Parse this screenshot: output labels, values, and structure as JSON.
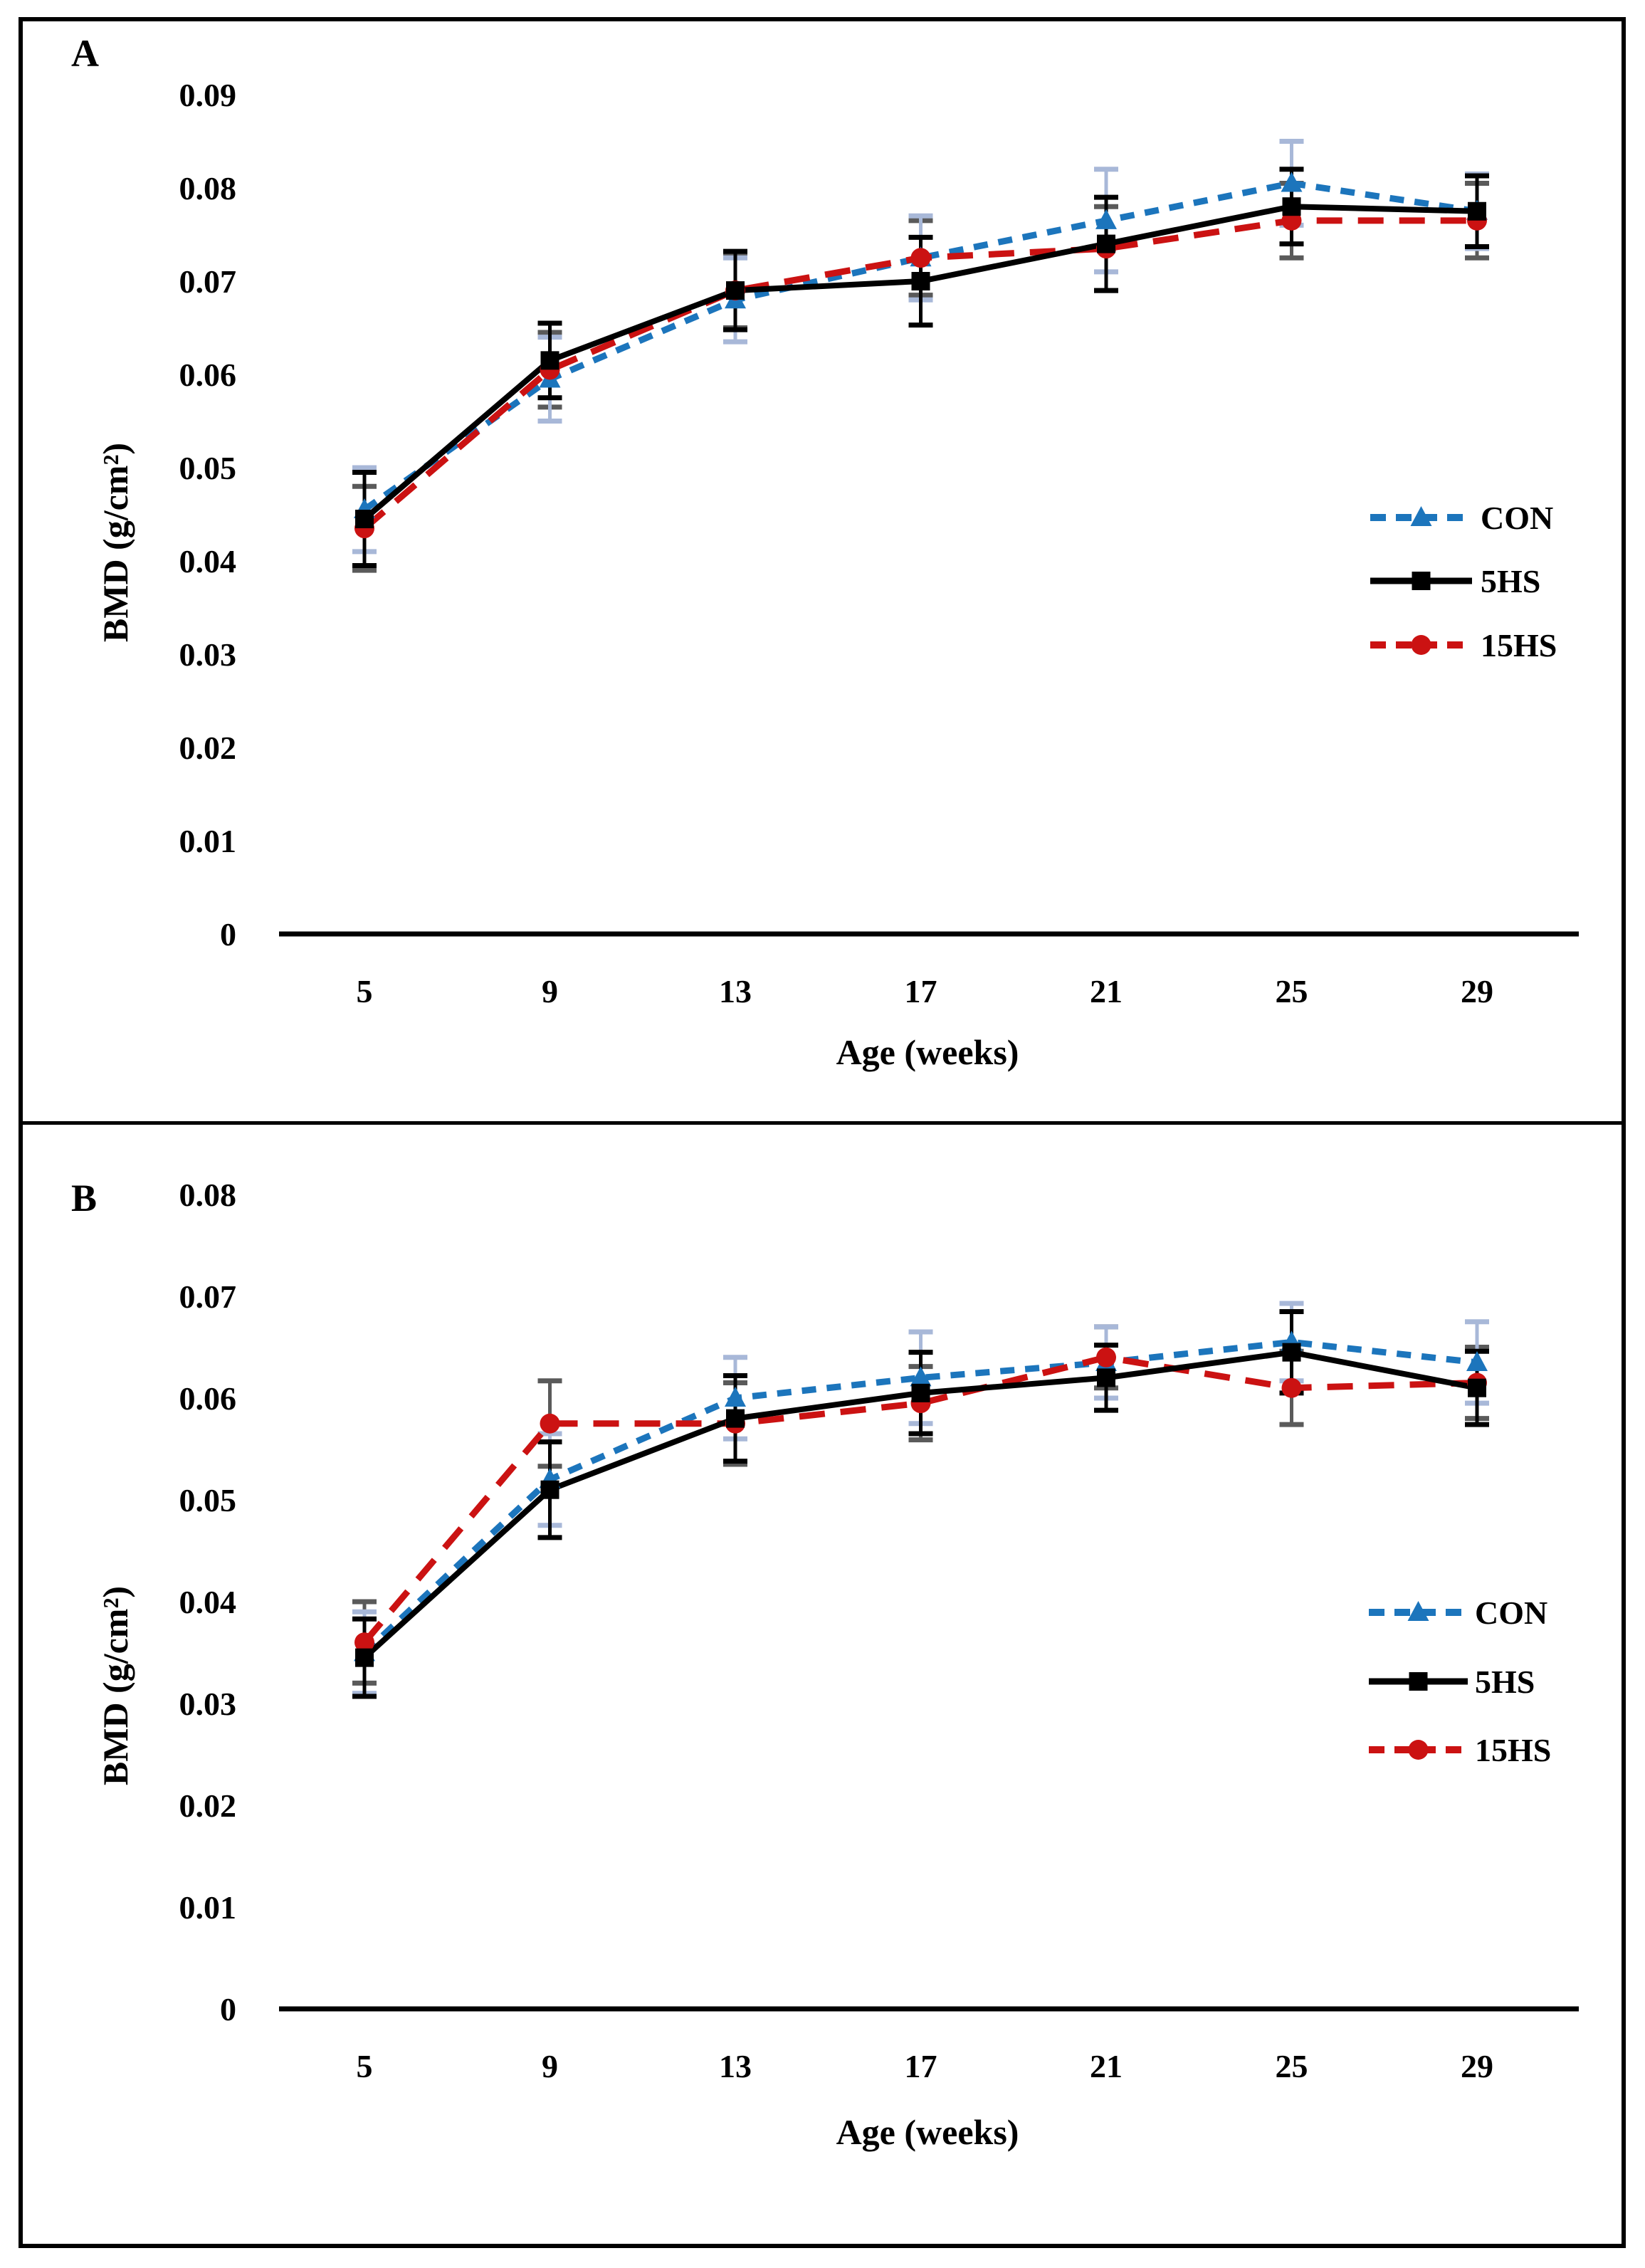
{
  "figure": {
    "panel_a_letter": "A",
    "panel_b_letter": "B",
    "y_axis_title": "BMD (g/cm²)",
    "x_axis_title": "Age (weeks)"
  },
  "chart_data": [
    {
      "type": "line",
      "panel_label": "A",
      "title": "",
      "xlabel": "Age (weeks)",
      "ylabel": "BMD (g/cm²)",
      "categories": [
        5,
        9,
        13,
        17,
        21,
        25,
        29
      ],
      "ylim": [
        0,
        0.09
      ],
      "yticks": [
        "0.09",
        "0.08",
        "0.07",
        "0.06",
        "0.05",
        "0.04",
        "0.03",
        "0.02",
        "0.01",
        "0"
      ],
      "ytick_values": [
        0.09,
        0.08,
        0.07,
        0.06,
        0.05,
        0.04,
        0.03,
        0.02,
        0.01,
        0
      ],
      "grid": false,
      "legend_position": "right-center",
      "series": [
        {
          "name": "CON",
          "color": "#1C75BC",
          "error_color": "#A8B8D8",
          "line_style": "dashed",
          "dash": "20 15",
          "marker": "triangle",
          "values": [
            0.0455,
            0.0595,
            0.068,
            0.0725,
            0.0765,
            0.0805,
            0.0775
          ],
          "errors": [
            0.0045,
            0.0045,
            0.0045,
            0.0045,
            0.0055,
            0.0045,
            0.004
          ]
        },
        {
          "name": "5HS",
          "color": "#000000",
          "error_color": "#000000",
          "line_style": "solid",
          "dash": "",
          "marker": "square",
          "values": [
            0.0445,
            0.0615,
            0.069,
            0.07,
            0.074,
            0.078,
            0.0775
          ],
          "errors": [
            0.005,
            0.004,
            0.0042,
            0.0047,
            0.005,
            0.004,
            0.0038
          ]
        },
        {
          "name": "15HS",
          "color": "#CB1212",
          "error_color": "#5A5A5A",
          "line_style": "dashed",
          "dash": "36 22",
          "marker": "circle",
          "values": [
            0.0435,
            0.0605,
            0.069,
            0.0725,
            0.0735,
            0.0765,
            0.0765
          ],
          "errors": [
            0.0045,
            0.004,
            0.004,
            0.004,
            0.0045,
            0.004,
            0.004
          ]
        }
      ]
    },
    {
      "type": "line",
      "panel_label": "B",
      "title": "",
      "xlabel": "Age (weeks)",
      "ylabel": "BMD (g/cm²)",
      "categories": [
        5,
        9,
        13,
        17,
        21,
        25,
        29
      ],
      "ylim": [
        0,
        0.08
      ],
      "yticks": [
        "0.08",
        "0.07",
        "0.06",
        "0.05",
        "0.04",
        "0.03",
        "0.02",
        "0.01",
        "0"
      ],
      "ytick_values": [
        0.08,
        0.07,
        0.06,
        0.05,
        0.04,
        0.03,
        0.02,
        0.01,
        0
      ],
      "grid": false,
      "legend_position": "right-center",
      "series": [
        {
          "name": "CON",
          "color": "#1C75BC",
          "error_color": "#A8B8D8",
          "line_style": "dashed",
          "dash": "20 15",
          "marker": "triangle",
          "values": [
            0.035,
            0.052,
            0.06,
            0.062,
            0.0635,
            0.0655,
            0.0635
          ],
          "errors": [
            0.004,
            0.0045,
            0.004,
            0.0045,
            0.0035,
            0.0038,
            0.004
          ]
        },
        {
          "name": "5HS",
          "color": "#000000",
          "error_color": "#000000",
          "line_style": "solid",
          "dash": "",
          "marker": "square",
          "values": [
            0.0345,
            0.051,
            0.058,
            0.0605,
            0.062,
            0.0645,
            0.061
          ],
          "errors": [
            0.0038,
            0.0047,
            0.0042,
            0.004,
            0.0032,
            0.004,
            0.0036
          ]
        },
        {
          "name": "15HS",
          "color": "#CB1212",
          "error_color": "#5A5A5A",
          "line_style": "dashed",
          "dash": "36 22",
          "marker": "circle",
          "values": [
            0.036,
            0.0575,
            0.0575,
            0.0595,
            0.064,
            0.061,
            0.0615
          ],
          "errors": [
            0.004,
            0.0042,
            0.004,
            0.0036,
            0.003,
            0.0036,
            0.0035
          ]
        }
      ]
    }
  ]
}
